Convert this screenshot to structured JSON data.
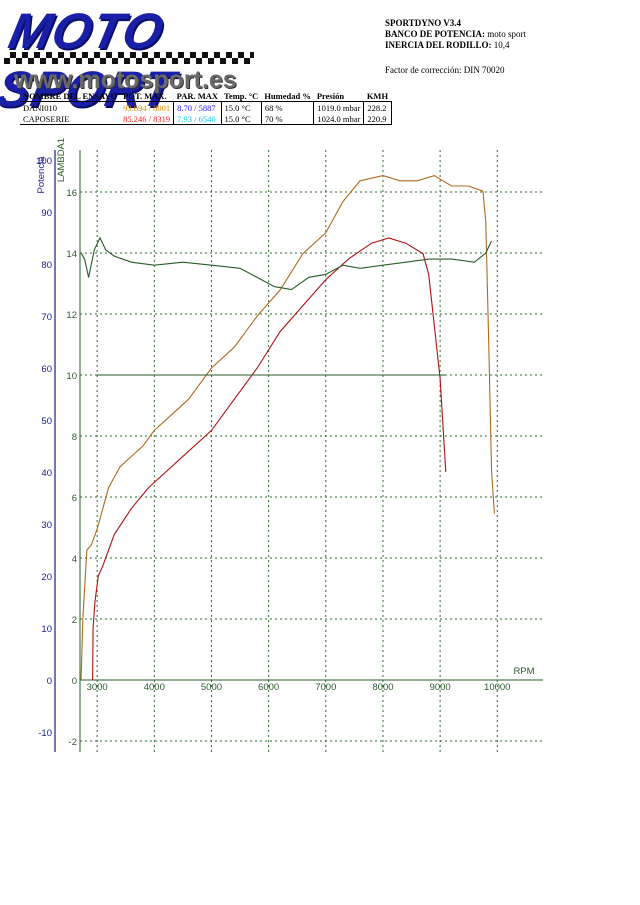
{
  "brand": {
    "name": "MOTO SPORT",
    "url": "www.motosport.es"
  },
  "info": {
    "software": "SPORTDYNO V3.4",
    "bench_label": "BANCO DE POTENCIA:",
    "bench_value": "moto sport",
    "inertia_label": "INERCIA DEL RODILLO:",
    "inertia_value": "10,4",
    "correction": "Factor de corrección: DIN 70020"
  },
  "runs_table": {
    "headers": [
      "NOMBRE DEL ENSAYO",
      "POT. MAX.",
      "PAR. MAX",
      "Temp. °C",
      "Humedad %",
      "Presión",
      "KMH"
    ],
    "rows": [
      {
        "name": "DANI010",
        "pot": "93.694 / 8001",
        "par": "8.70 / 5887",
        "temp": "15.0 °C",
        "hum": "68 %",
        "pres": "1019.0 mbar",
        "kmh": "228.2"
      },
      {
        "name": "CAPOSERIE",
        "pot": "85.246 / 8319",
        "par": "7.93 / 6546",
        "temp": "15.0 °C",
        "hum": "70 %",
        "pres": "1024.0 mbar",
        "kmh": "220.9"
      }
    ]
  },
  "colors": {
    "orange": "#e08b00",
    "blue": "#1818ff",
    "red": "#ff1a1a",
    "cyan": "#00c8e8",
    "power1": "#b06a20",
    "power2": "#b01010",
    "lambda": "#2a5a2a",
    "axis": "#1a1a8c",
    "grid": "#2e6b2e"
  },
  "chart_data": {
    "type": "line",
    "xlabel": "RPM",
    "ylabel_left": "Potencia",
    "ylabel_right": "LAMBDA1",
    "x_ticks": [
      3000,
      4000,
      5000,
      6000,
      7000,
      8000,
      9000,
      10000
    ],
    "xlim": [
      2700,
      10800
    ],
    "power_ticks": [
      -10,
      0,
      10,
      20,
      30,
      40,
      50,
      60,
      70,
      80,
      90,
      100
    ],
    "power_lim": [
      -15,
      100
    ],
    "lambda_ticks": [
      -2,
      0,
      2,
      4,
      6,
      8,
      10,
      12,
      14,
      16
    ],
    "lambda_lim": [
      -2.5,
      16.5
    ],
    "grid": true,
    "series": [
      {
        "name": "DANI010",
        "axis": "power",
        "color": "power1",
        "points": [
          [
            2720,
            0
          ],
          [
            2750,
            12
          ],
          [
            2820,
            25
          ],
          [
            2900,
            26
          ],
          [
            3000,
            29
          ],
          [
            3200,
            37
          ],
          [
            3400,
            41
          ],
          [
            3600,
            43
          ],
          [
            3800,
            45
          ],
          [
            4000,
            48
          ],
          [
            4300,
            51
          ],
          [
            4600,
            54
          ],
          [
            5000,
            60
          ],
          [
            5400,
            64
          ],
          [
            5800,
            70
          ],
          [
            6200,
            75
          ],
          [
            6600,
            82
          ],
          [
            7000,
            86
          ],
          [
            7300,
            92
          ],
          [
            7600,
            96
          ],
          [
            8000,
            97
          ],
          [
            8300,
            96
          ],
          [
            8600,
            96
          ],
          [
            8900,
            97
          ],
          [
            9200,
            95
          ],
          [
            9500,
            95
          ],
          [
            9750,
            94
          ],
          [
            9800,
            88
          ],
          [
            9850,
            65
          ],
          [
            9900,
            40
          ],
          [
            9950,
            32
          ]
        ]
      },
      {
        "name": "CAPOSERIE",
        "axis": "power",
        "color": "power2",
        "points": [
          [
            2920,
            0
          ],
          [
            2930,
            10
          ],
          [
            2960,
            15
          ],
          [
            3020,
            20
          ],
          [
            3100,
            22
          ],
          [
            3300,
            28
          ],
          [
            3600,
            33
          ],
          [
            3900,
            37
          ],
          [
            4200,
            40
          ],
          [
            4600,
            44
          ],
          [
            5000,
            48
          ],
          [
            5400,
            54
          ],
          [
            5800,
            60
          ],
          [
            6200,
            67
          ],
          [
            6600,
            72
          ],
          [
            7000,
            77
          ],
          [
            7400,
            81
          ],
          [
            7800,
            84
          ],
          [
            8100,
            85
          ],
          [
            8400,
            84
          ],
          [
            8700,
            82
          ],
          [
            8800,
            78
          ],
          [
            8900,
            68
          ],
          [
            9000,
            58
          ],
          [
            9100,
            40
          ]
        ]
      },
      {
        "name": "LAMBDA1",
        "axis": "lambda",
        "color": "lambda",
        "points": [
          [
            2720,
            14.0
          ],
          [
            2780,
            13.8
          ],
          [
            2850,
            13.2
          ],
          [
            2950,
            14.1
          ],
          [
            3050,
            14.5
          ],
          [
            3150,
            14.1
          ],
          [
            3300,
            13.9
          ],
          [
            3600,
            13.7
          ],
          [
            4000,
            13.6
          ],
          [
            4500,
            13.7
          ],
          [
            5000,
            13.6
          ],
          [
            5500,
            13.5
          ],
          [
            5800,
            13.2
          ],
          [
            6100,
            12.9
          ],
          [
            6400,
            12.8
          ],
          [
            6700,
            13.2
          ],
          [
            7000,
            13.3
          ],
          [
            7300,
            13.6
          ],
          [
            7600,
            13.5
          ],
          [
            8000,
            13.6
          ],
          [
            8400,
            13.7
          ],
          [
            8800,
            13.8
          ],
          [
            9200,
            13.8
          ],
          [
            9600,
            13.7
          ],
          [
            9800,
            14.0
          ],
          [
            9900,
            14.4
          ]
        ]
      },
      {
        "name": "LAMBDA1-ref",
        "axis": "lambda",
        "color": "lambda",
        "points": [
          [
            3000,
            10.0
          ],
          [
            9100,
            10.0
          ]
        ]
      }
    ]
  }
}
